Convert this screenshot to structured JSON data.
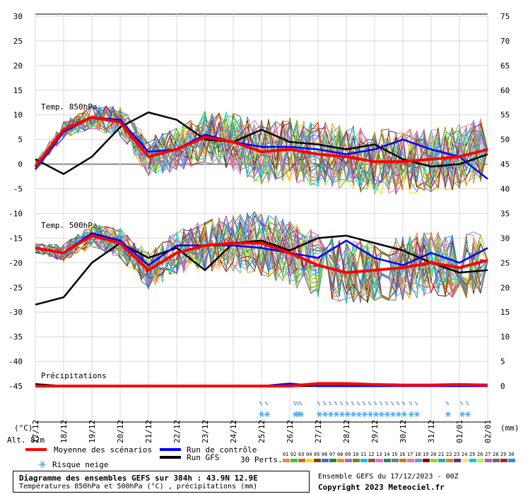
{
  "chart_data": {
    "type": "line",
    "title": "Diagramme des ensembles GEFS sur 384h : 43.9N 12.9E",
    "subtitle": "Températures 850hPa et 500hPa (°C) , précipitations (mm)",
    "left_unit": "(°C)",
    "right_unit": "(mm)",
    "left_ticks": [
      30,
      25,
      20,
      15,
      10,
      5,
      0,
      -5,
      -10,
      -15,
      -20,
      -25,
      -30,
      -35,
      -40,
      -45
    ],
    "left_ylim": [
      -45,
      30
    ],
    "right_ticks": [
      75,
      70,
      65,
      60,
      55,
      50,
      45,
      40,
      35,
      30,
      25,
      20,
      15,
      10,
      5,
      0
    ],
    "right_ylim": [
      0,
      75
    ],
    "x_labels": [
      "17/12",
      "18/12",
      "19/12",
      "20/12",
      "21/12",
      "22/12",
      "23/12",
      "24/12",
      "25/12",
      "26/12",
      "27/12",
      "28/12",
      "29/12",
      "30/12",
      "31/12",
      "01/01",
      "02/01"
    ],
    "section_labels": [
      "Temp. 850hPa",
      "Temp. 500hPa",
      "Précipitations"
    ],
    "altitude_label": "Alt. 82m",
    "snow_risk_label": "%",
    "snow_risk_days": [
      8.0,
      8.2,
      9.2,
      9.3,
      9.4,
      10.05,
      10.25,
      10.45,
      10.65,
      10.85,
      11.05,
      11.25,
      11.45,
      11.65,
      11.85,
      12.05,
      12.25,
      12.45,
      12.65,
      12.85,
      13.05,
      13.3,
      13.5,
      14.6,
      15.1,
      15.3
    ],
    "series": [
      {
        "name": "Moyenne des scénarios",
        "color": "#ff0000",
        "t850": [
          -0.5,
          7,
          9.5,
          8.5,
          1.5,
          3,
          5.5,
          4.5,
          2.5,
          3,
          2,
          1.5,
          0.5,
          0.5,
          1,
          1.5,
          3
        ],
        "t500": [
          -17,
          -18,
          -14.5,
          -16,
          -21.5,
          -18,
          -16.5,
          -16,
          -16,
          -18,
          -20.5,
          -22,
          -21.5,
          -21,
          -20,
          -21,
          -19.5
        ],
        "precip": [
          0,
          0,
          0,
          0,
          0,
          0,
          0,
          0,
          0,
          0,
          0.5,
          0.5,
          0.3,
          0.2,
          0.2,
          0.3,
          0.2
        ]
      },
      {
        "name": "Run de contrôle",
        "color": "#0000ff",
        "t850": [
          -1,
          6.5,
          9.5,
          9,
          2.5,
          3,
          6,
          4.5,
          3.5,
          3.5,
          3,
          2,
          3,
          5,
          3,
          1.5,
          -3
        ],
        "t500": [
          -17,
          -18,
          -14,
          -15.5,
          -20.5,
          -16.5,
          -16.5,
          -16.5,
          -17,
          -18,
          -19,
          -15.5,
          -19,
          -20.5,
          -18,
          -20,
          -17
        ],
        "precip": [
          0,
          0,
          0,
          0,
          0,
          0,
          0,
          0,
          0,
          0.5,
          0,
          0,
          0,
          0,
          0,
          0,
          0
        ]
      },
      {
        "name": "Run GFS",
        "color": "#000000",
        "t850": [
          1,
          -2,
          1.5,
          7.5,
          10.5,
          9,
          5,
          4.5,
          7,
          4.5,
          4,
          3,
          4,
          1,
          -0.5,
          0,
          2
        ],
        "t500": [
          -28.5,
          -27,
          -20,
          -16,
          -19,
          -17,
          -21.5,
          -16,
          -15.5,
          -17.5,
          -15,
          -14.5,
          -16,
          -17.5,
          -20,
          -22,
          -21.5
        ],
        "precip": [
          0.4,
          0,
          0,
          0,
          0,
          0,
          0,
          0,
          0,
          0,
          0,
          0,
          0,
          0,
          0,
          0,
          0
        ]
      }
    ],
    "perturbation_count_label": "30 Perts.",
    "perturbations": [
      {
        "id": "01",
        "color": "#ff7f50"
      },
      {
        "id": "02",
        "color": "#32cd32"
      },
      {
        "id": "03",
        "color": "#d2691e"
      },
      {
        "id": "04",
        "color": "#ffd700"
      },
      {
        "id": "05",
        "color": "#8b4513"
      },
      {
        "id": "06",
        "color": "#4169e1"
      },
      {
        "id": "07",
        "color": "#228b22"
      },
      {
        "id": "08",
        "color": "#ff8c00"
      },
      {
        "id": "09",
        "color": "#9370db"
      },
      {
        "id": "10",
        "color": "#808000"
      },
      {
        "id": "11",
        "color": "#00bfff"
      },
      {
        "id": "12",
        "color": "#a0522d"
      },
      {
        "id": "13",
        "color": "#da70d6"
      },
      {
        "id": "14",
        "color": "#2e8b57"
      },
      {
        "id": "15",
        "color": "#708090"
      },
      {
        "id": "16",
        "color": "#b8860b"
      },
      {
        "id": "17",
        "color": "#ff69b4"
      },
      {
        "id": "18",
        "color": "#6495ed"
      },
      {
        "id": "19",
        "color": "#8b0000"
      },
      {
        "id": "20",
        "color": "#9acd32"
      },
      {
        "id": "21",
        "color": "#20b2aa"
      },
      {
        "id": "22",
        "color": "#cd853f"
      },
      {
        "id": "23",
        "color": "#483d8b"
      },
      {
        "id": "24",
        "color": "#f0e68c"
      },
      {
        "id": "25",
        "color": "#00ced1"
      },
      {
        "id": "26",
        "color": "#adff2f"
      },
      {
        "id": "27",
        "color": "#ba55d3"
      },
      {
        "id": "28",
        "color": "#696969"
      },
      {
        "id": "29",
        "color": "#b22222"
      },
      {
        "id": "30",
        "color": "#1e90ff"
      }
    ]
  },
  "legend": {
    "mean_label": "Moyenne des scénarios",
    "control_label": "Run de contrôle",
    "gfs_label": "Run GFS",
    "snow_label": "Risque neige"
  },
  "footer": {
    "title": "Diagramme des ensembles GEFS sur 384h : 43.9N 12.9E",
    "subtitle": "Températures 850hPa et 500hPa (°C) , précipitations (mm)",
    "ensemble_line": "Ensemble GEFS du 17/12/2023 - 00Z",
    "copyright": "Copyright 2023 Meteociel.fr"
  }
}
